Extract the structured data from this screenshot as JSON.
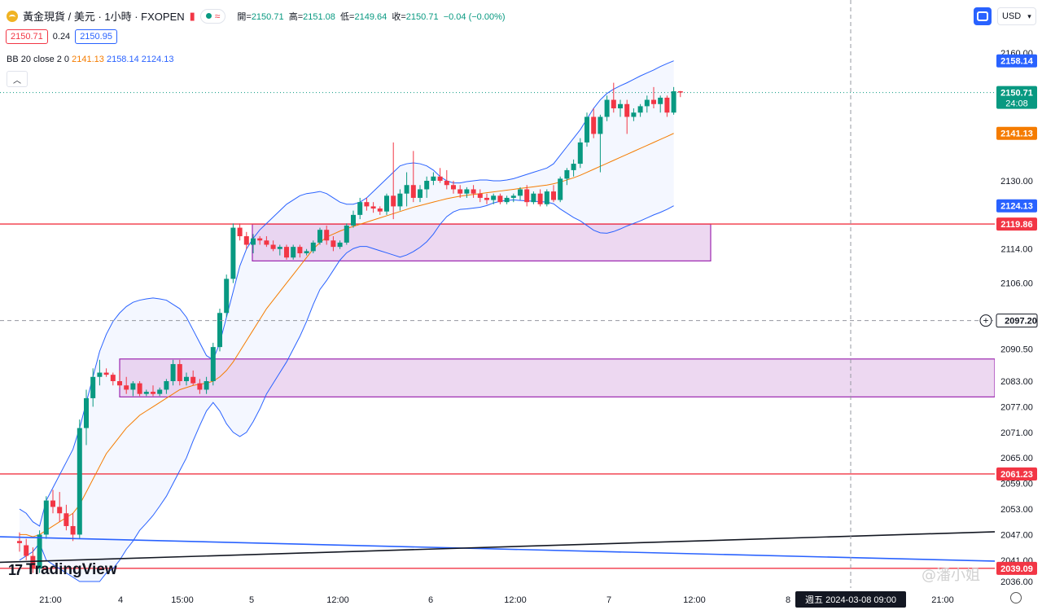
{
  "header": {
    "symbol": "黃金現貨 / 美元 · 1小時 · FXOPEN",
    "open_label": "開=",
    "open": "2150.71",
    "high_label": "高=",
    "high": "2151.08",
    "low_label": "低=",
    "low": "2149.64",
    "close_label": "收=",
    "close": "2150.71",
    "change": "−0.04 (−0.00%)",
    "bid": "2150.71",
    "spread": "0.24",
    "ask": "2150.95",
    "indicator_name": "BB 20 close 2 0",
    "bb_basis": "2141.13",
    "bb_upper": "2158.14",
    "bb_lower": "2124.13",
    "currency": "USD",
    "collapse_icon": "chevron-up-icon",
    "wave_icon": "≈"
  },
  "branding": {
    "tradingview": "TradingView",
    "watermark": "@潘小姐"
  },
  "colors": {
    "up": "#089981",
    "down": "#f23645",
    "bb_line": "#2962ff",
    "basis": "#f57c00",
    "zone_fill": "#e1bee7",
    "zone_border": "#9c27b0",
    "hline": "#f23645"
  },
  "chart_data": {
    "type": "candlestick",
    "title": "黃金現貨 / 美元 · 1小時 · FXOPEN",
    "x_tick_labels": [
      "21:00",
      "4",
      "15:00",
      "5",
      "12:00",
      "6",
      "12:00",
      "7",
      "12:00",
      "8",
      "週五 2024-03-08 09:00",
      "21:00"
    ],
    "y_ticks": [
      2160.0,
      2130.0,
      2114.0,
      2106.0,
      2090.5,
      2083.0,
      2077.0,
      2071.0,
      2065.0,
      2059.0,
      2053.0,
      2047.0,
      2041.0,
      2036.0
    ],
    "ylim": [
      2035,
      2163
    ],
    "price_labels": [
      {
        "label": "2158.14",
        "value": 2158.14,
        "color": "#2962ff"
      },
      {
        "label": "2150.71",
        "value": 2150.71,
        "color": "#089981",
        "sub": "24:08"
      },
      {
        "label": "2141.13",
        "value": 2141.13,
        "color": "#f57c00"
      },
      {
        "label": "2124.13",
        "value": 2124.13,
        "color": "#2962ff"
      },
      {
        "label": "2119.86",
        "value": 2119.86,
        "color": "#f23645"
      },
      {
        "label": "2097.20",
        "value": 2097.2,
        "color": "#ffffff",
        "crosshair": true
      },
      {
        "label": "2061.23",
        "value": 2061.23,
        "color": "#f23645"
      },
      {
        "label": "2039.09",
        "value": 2039.09,
        "color": "#f23645"
      }
    ],
    "horizontal_lines": [
      2119.86,
      2061.23,
      2039.09
    ],
    "zones": [
      {
        "top": 2119.86,
        "bottom": 2111.2
      },
      {
        "top": 2088.2,
        "bottom": 2079.3
      }
    ],
    "trendlines": [
      {
        "color": "#2962ff",
        "from": [
          0,
          2046.5
        ],
        "to": [
          1280,
          2040.5
        ]
      },
      {
        "color": "#131722",
        "from": [
          0,
          2040.5
        ],
        "to": [
          1280,
          2048.0
        ]
      }
    ],
    "crosshair": {
      "x_label": "週五 2024-03-08 09:00",
      "y_value": 2097.2
    },
    "candles": [
      [
        2045.5,
        2047.5,
        2043.0,
        2045.0
      ],
      [
        2044.5,
        2046.0,
        2041.0,
        2042.0
      ],
      [
        2042.0,
        2044.0,
        2038.0,
        2039.0
      ],
      [
        2039.0,
        2048.0,
        2038.0,
        2047.0
      ],
      [
        2047.0,
        2056.0,
        2046.0,
        2055.0
      ],
      [
        2055.0,
        2057.5,
        2052.0,
        2053.5
      ],
      [
        2053.5,
        2057.0,
        2050.0,
        2052.0
      ],
      [
        2052.0,
        2054.0,
        2048.0,
        2049.0
      ],
      [
        2049.0,
        2052.0,
        2045.5,
        2047.0
      ],
      [
        2047.0,
        2074.0,
        2046.0,
        2072.0
      ],
      [
        2072.0,
        2081.0,
        2068.0,
        2079.0
      ],
      [
        2079.0,
        2086.0,
        2077.0,
        2084.0
      ],
      [
        2084.0,
        2088.0,
        2082.0,
        2085.0
      ],
      [
        2085.0,
        2086.0,
        2084.0,
        2084.5
      ],
      [
        2084.5,
        2085.0,
        2082.0,
        2083.0
      ],
      [
        2083.0,
        2085.5,
        2081.5,
        2082.0
      ],
      [
        2082.0,
        2084.0,
        2080.0,
        2081.0
      ],
      [
        2081.0,
        2083.0,
        2079.5,
        2082.5
      ],
      [
        2082.5,
        2083.0,
        2079.5,
        2080.0
      ],
      [
        2080.0,
        2081.0,
        2079.5,
        2080.5
      ],
      [
        2080.5,
        2082.0,
        2079.5,
        2080.0
      ],
      [
        2080.0,
        2081.5,
        2079.5,
        2081.0
      ],
      [
        2081.0,
        2083.5,
        2080.0,
        2083.0
      ],
      [
        2083.0,
        2088.0,
        2082.0,
        2087.0
      ],
      [
        2087.0,
        2088.0,
        2082.0,
        2083.0
      ],
      [
        2083.0,
        2085.0,
        2082.0,
        2084.0
      ],
      [
        2084.0,
        2085.5,
        2082.0,
        2082.5
      ],
      [
        2082.5,
        2083.5,
        2080.0,
        2081.0
      ],
      [
        2081.0,
        2084.0,
        2080.0,
        2083.0
      ],
      [
        2083.0,
        2092.0,
        2082.0,
        2091.0
      ],
      [
        2091.0,
        2100.0,
        2090.0,
        2099.0
      ],
      [
        2099.0,
        2108.0,
        2098.0,
        2107.0
      ],
      [
        2107.0,
        2120.0,
        2106.0,
        2119.0
      ],
      [
        2119.0,
        2120.0,
        2116.0,
        2117.0
      ],
      [
        2117.0,
        2118.0,
        2114.0,
        2115.0
      ],
      [
        2115.0,
        2117.5,
        2113.0,
        2116.5
      ],
      [
        2116.5,
        2117.0,
        2115.0,
        2116.0
      ],
      [
        2116.0,
        2117.0,
        2114.5,
        2115.0
      ],
      [
        2115.0,
        2116.0,
        2113.5,
        2114.0
      ],
      [
        2114.0,
        2115.0,
        2112.5,
        2114.5
      ],
      [
        2114.5,
        2115.0,
        2111.5,
        2112.0
      ],
      [
        2112.0,
        2115.0,
        2111.5,
        2114.5
      ],
      [
        2114.5,
        2115.0,
        2112.0,
        2113.0
      ],
      [
        2113.0,
        2114.0,
        2112.5,
        2113.5
      ],
      [
        2113.5,
        2116.0,
        2113.0,
        2115.5
      ],
      [
        2115.5,
        2119.0,
        2115.0,
        2118.5
      ],
      [
        2118.5,
        2119.5,
        2115.0,
        2116.0
      ],
      [
        2116.0,
        2117.0,
        2113.5,
        2114.5
      ],
      [
        2114.5,
        2116.0,
        2114.0,
        2115.5
      ],
      [
        2115.5,
        2120.0,
        2115.0,
        2119.5
      ],
      [
        2119.5,
        2123.0,
        2119.0,
        2122.0
      ],
      [
        2122.0,
        2126.0,
        2121.0,
        2125.0
      ],
      [
        2125.0,
        2126.0,
        2123.0,
        2124.0
      ],
      [
        2124.0,
        2125.0,
        2122.5,
        2123.5
      ],
      [
        2123.5,
        2124.0,
        2122.0,
        2122.8
      ],
      [
        2122.8,
        2127.0,
        2122.0,
        2126.5
      ],
      [
        2126.5,
        2139.0,
        2121.0,
        2124.0
      ],
      [
        2124.0,
        2128.0,
        2123.0,
        2127.0
      ],
      [
        2127.0,
        2132.0,
        2124.0,
        2129.0
      ],
      [
        2129.0,
        2137.0,
        2125.0,
        2126.0
      ],
      [
        2126.0,
        2129.0,
        2125.0,
        2128.0
      ],
      [
        2128.0,
        2131.0,
        2126.0,
        2130.0
      ],
      [
        2130.0,
        2132.0,
        2129.0,
        2131.0
      ],
      [
        2131.0,
        2133.0,
        2129.5,
        2130.0
      ],
      [
        2130.0,
        2132.5,
        2128.0,
        2129.0
      ],
      [
        2129.0,
        2130.0,
        2127.0,
        2128.0
      ],
      [
        2128.0,
        2129.0,
        2126.0,
        2127.0
      ],
      [
        2127.0,
        2128.5,
        2126.0,
        2128.0
      ],
      [
        2128.0,
        2129.0,
        2126.0,
        2127.0
      ],
      [
        2127.0,
        2128.0,
        2125.0,
        2126.0
      ],
      [
        2126.0,
        2127.0,
        2124.5,
        2125.5
      ],
      [
        2125.5,
        2127.0,
        2124.5,
        2126.5
      ],
      [
        2126.5,
        2127.0,
        2124.5,
        2125.0
      ],
      [
        2125.0,
        2126.5,
        2124.5,
        2126.0
      ],
      [
        2126.0,
        2127.0,
        2125.0,
        2126.5
      ],
      [
        2126.5,
        2128.5,
        2125.5,
        2128.0
      ],
      [
        2128.0,
        2129.0,
        2124.0,
        2125.0
      ],
      [
        2125.0,
        2127.5,
        2124.5,
        2127.0
      ],
      [
        2127.0,
        2128.0,
        2124.0,
        2124.5
      ],
      [
        2124.5,
        2128.0,
        2124.0,
        2127.5
      ],
      [
        2127.5,
        2129.0,
        2125.0,
        2125.5
      ],
      [
        2125.5,
        2131.0,
        2125.0,
        2130.5
      ],
      [
        2130.5,
        2133.0,
        2129.0,
        2132.5
      ],
      [
        2132.5,
        2135.0,
        2131.0,
        2134.0
      ],
      [
        2134.0,
        2140.0,
        2133.0,
        2139.0
      ],
      [
        2139.0,
        2146.0,
        2138.0,
        2145.0
      ],
      [
        2145.0,
        2147.0,
        2140.0,
        2141.0
      ],
      [
        2141.0,
        2145.5,
        2132.0,
        2145.0
      ],
      [
        2145.0,
        2150.0,
        2144.0,
        2149.0
      ],
      [
        2149.0,
        2153.0,
        2146.0,
        2147.0
      ],
      [
        2147.0,
        2149.0,
        2145.0,
        2148.0
      ],
      [
        2148.0,
        2149.0,
        2141.0,
        2145.0
      ],
      [
        2145.0,
        2147.0,
        2144.0,
        2146.0
      ],
      [
        2146.0,
        2148.0,
        2145.0,
        2147.5
      ],
      [
        2147.5,
        2150.0,
        2146.0,
        2149.0
      ],
      [
        2149.0,
        2152.0,
        2147.0,
        2148.0
      ],
      [
        2148.0,
        2150.0,
        2146.0,
        2149.5
      ],
      [
        2149.5,
        2150.0,
        2145.0,
        2146.0
      ],
      [
        2146.0,
        2152.0,
        2145.5,
        2151.0
      ],
      [
        2151.0,
        2151.08,
        2149.64,
        2150.71
      ]
    ],
    "series": [
      {
        "name": "BB basis",
        "values": [
          2047,
          2047,
          2046.5,
          2047,
          2048,
          2049,
          2050,
          2051,
          2052,
          2054,
          2057,
          2060,
          2063,
          2066,
          2068,
          2070,
          2072,
          2073.5,
          2075,
          2076,
          2077,
          2078,
          2079,
          2080,
          2081,
          2081.5,
          2082,
          2082.3,
          2082.5,
          2083,
          2084,
          2085.5,
          2087.5,
          2090,
          2092.5,
          2095,
          2097.5,
          2100,
          2102,
          2104,
          2106,
          2108,
          2110,
          2112,
          2114,
          2115.5,
          2116.8,
          2117.5,
          2118.2,
          2118.8,
          2119.3,
          2119.8,
          2120.3,
          2120.8,
          2121.3,
          2121.8,
          2122.3,
          2122.8,
          2123.3,
          2123.8,
          2124.2,
          2124.6,
          2125,
          2125.4,
          2125.8,
          2126.1,
          2126.4,
          2126.6,
          2126.8,
          2127,
          2127.2,
          2127.4,
          2127.6,
          2127.8,
          2128,
          2128.2,
          2128.4,
          2128.6,
          2128.8,
          2129,
          2129.3,
          2129.7,
          2130.2,
          2130.7,
          2131.3,
          2132,
          2132.7,
          2133.4,
          2134.1,
          2134.8,
          2135.5,
          2136.2,
          2136.9,
          2137.6,
          2138.3,
          2139,
          2139.7,
          2140.4,
          2141.13
        ]
      },
      {
        "name": "BB upper",
        "values": [
          2053,
          2052,
          2050,
          2049,
          2055,
          2058,
          2061,
          2064,
          2067,
          2072,
          2078,
          2084,
          2090,
          2094,
          2097,
          2099,
          2100.5,
          2101.5,
          2102,
          2102.3,
          2102.5,
          2102.3,
          2102,
          2101,
          2100,
          2098,
          2095,
          2092,
          2089,
          2088,
          2092,
          2098,
          2104,
          2110,
          2114,
          2116.5,
          2118.5,
          2120,
          2121.5,
          2123,
          2124.5,
          2125.5,
          2126.5,
          2127,
          2127.2,
          2127.5,
          2127,
          2126,
          2125,
          2124.5,
          2124.5,
          2125,
          2126,
          2127.5,
          2129,
          2130.5,
          2132,
          2133.5,
          2134,
          2134.2,
          2134,
          2133.5,
          2132.5,
          2131,
          2130,
          2129.5,
          2129.5,
          2129.8,
          2130,
          2130.2,
          2130.2,
          2130,
          2130,
          2130.2,
          2130.5,
          2131,
          2131.5,
          2132,
          2132.5,
          2133,
          2134,
          2136,
          2138,
          2140,
          2142,
          2144.5,
          2147,
          2149,
          2150.5,
          2151.5,
          2152.3,
          2153,
          2153.8,
          2154.6,
          2155.3,
          2156,
          2156.8,
          2157.5,
          2158.14
        ]
      },
      {
        "name": "BB lower",
        "values": [
          2041,
          2042,
          2043,
          2045,
          2041,
          2040,
          2039,
          2038,
          2037,
          2036,
          2036,
          2036,
          2036,
          2038,
          2039,
          2041,
          2043.5,
          2045.5,
          2048,
          2049.7,
          2051.5,
          2053.7,
          2056,
          2059,
          2062,
          2065,
          2069,
          2072.6,
          2076,
          2078,
          2076,
          2073,
          2071,
          2070,
          2071,
          2073.5,
          2076.5,
          2080,
          2082.5,
          2085,
          2087.5,
          2090.5,
          2093.5,
          2097,
          2101,
          2104.5,
          2106.6,
          2109,
          2111.4,
          2113.1,
          2114.1,
          2114.6,
          2114.6,
          2114.1,
          2113.6,
          2113.1,
          2112.6,
          2112.1,
          2112.6,
          2113.4,
          2114.4,
          2115.7,
          2117.5,
          2119.8,
          2121.6,
          2122.7,
          2123.3,
          2123.4,
          2123.6,
          2123.8,
          2124.2,
          2124.8,
          2125.2,
          2125.4,
          2125.5,
          2125.4,
          2125.3,
          2125.2,
          2125.1,
          2125,
          2124.6,
          2123.4,
          2122.4,
          2121.4,
          2120.6,
          2119.5,
          2118.4,
          2117.8,
          2117.7,
          2118.1,
          2118.7,
          2119.4,
          2120,
          2120.6,
          2121.3,
          2122,
          2122.6,
          2123.3,
          2124.13
        ]
      }
    ]
  }
}
